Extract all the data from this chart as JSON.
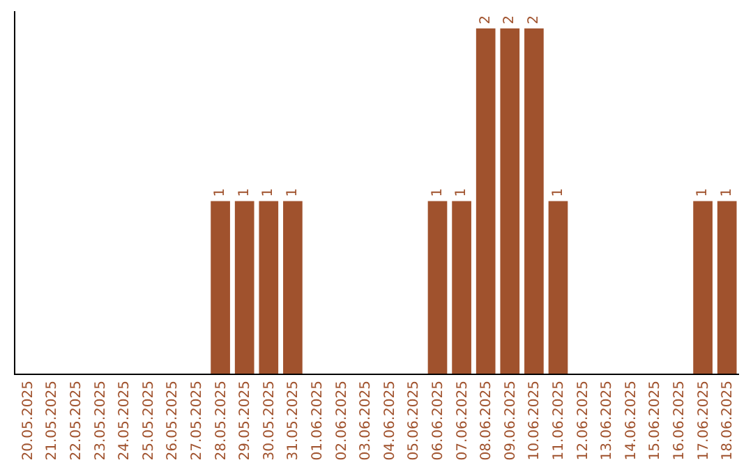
{
  "chart_data": {
    "type": "bar",
    "categories": [
      "20.05.2025",
      "21.05.2025",
      "22.05.2025",
      "23.05.2025",
      "24.05.2025",
      "25.05.2025",
      "26.05.2025",
      "27.05.2025",
      "28.05.2025",
      "29.05.2025",
      "30.05.2025",
      "31.05.2025",
      "01.06.2025",
      "02.06.2025",
      "03.06.2025",
      "04.06.2025",
      "05.06.2025",
      "06.06.2025",
      "07.06.2025",
      "08.06.2025",
      "09.06.2025",
      "10.06.2025",
      "11.06.2025",
      "12.06.2025",
      "13.06.2025",
      "14.06.2025",
      "15.06.2025",
      "16.06.2025",
      "17.06.2025",
      "18.06.2025"
    ],
    "values": [
      0,
      0,
      0,
      0,
      0,
      0,
      0,
      0,
      1,
      1,
      1,
      1,
      0,
      0,
      0,
      0,
      0,
      1,
      1,
      2,
      2,
      2,
      1,
      0,
      0,
      0,
      0,
      0,
      1,
      1
    ],
    "value_labels": [
      null,
      null,
      null,
      null,
      null,
      null,
      null,
      null,
      "1",
      "1",
      "1",
      "1",
      null,
      null,
      null,
      null,
      null,
      "1",
      "1",
      "2",
      "2",
      "2",
      "1",
      null,
      null,
      null,
      null,
      null,
      "1",
      "1"
    ],
    "color": "#a0522d",
    "ylim": [
      0,
      2.1
    ],
    "tick_labels": "x"
  }
}
